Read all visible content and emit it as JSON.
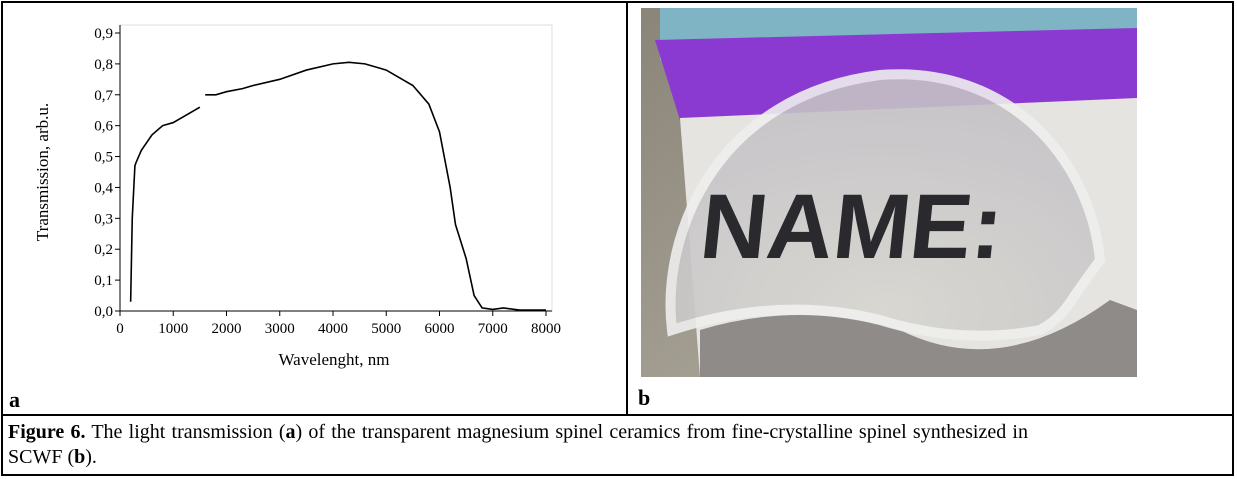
{
  "chart_data": {
    "type": "line",
    "xlabel": "Wavelenght, nm",
    "ylabel": "Transmission, arb.u.",
    "x": [
      200,
      230,
      280,
      300,
      400,
      600,
      800,
      1000,
      1200,
      1500,
      1550,
      1600,
      1800,
      2000,
      2300,
      2500,
      3000,
      3500,
      4000,
      4300,
      4600,
      5000,
      5500,
      5800,
      6000,
      6200,
      6300,
      6500,
      6650,
      6800,
      7000,
      7200,
      7500,
      8000
    ],
    "series": [
      {
        "color": "#000000",
        "values": [
          0.03,
          0.3,
          0.47,
          0.48,
          0.52,
          0.57,
          0.6,
          0.61,
          0.63,
          0.66,
          null,
          0.7,
          0.7,
          0.71,
          0.72,
          0.73,
          0.75,
          0.78,
          0.8,
          0.805,
          0.8,
          0.78,
          0.73,
          0.67,
          0.58,
          0.4,
          0.28,
          0.17,
          0.05,
          0.01,
          0.005,
          0.01,
          0.003,
          0.003
        ]
      }
    ],
    "xlim": [
      0,
      8000
    ],
    "ylim": [
      0,
      0.9
    ],
    "xticks": [
      0,
      1000,
      2000,
      3000,
      4000,
      5000,
      6000,
      7000,
      8000
    ],
    "yticks": [
      {
        "value": 0,
        "label": "0,0"
      },
      {
        "value": 0.1,
        "label": "0,1"
      },
      {
        "value": 0.2,
        "label": "0,2"
      },
      {
        "value": 0.3,
        "label": "0,3"
      },
      {
        "value": 0.4,
        "label": "0,4"
      },
      {
        "value": 0.5,
        "label": "0,5"
      },
      {
        "value": 0.6,
        "label": "0,6"
      },
      {
        "value": 0.7,
        "label": "0,7"
      },
      {
        "value": 0.8,
        "label": "0,8"
      },
      {
        "value": 0.9,
        "label": "0,9"
      }
    ]
  },
  "panels": {
    "a": "a",
    "b": "b"
  },
  "photo": {
    "text": "NAME:"
  },
  "caption": [
    {
      "text": "Figure 6.",
      "bold": true
    },
    {
      "text": " The light transmission ("
    },
    {
      "text": "a",
      "bold": true
    },
    {
      "text": ") of the transparent magnesium spinel ceramics from fine-crystalline spinel synthesized in SCWF ("
    },
    {
      "text": "b",
      "bold": true
    },
    {
      "text": ")."
    }
  ]
}
